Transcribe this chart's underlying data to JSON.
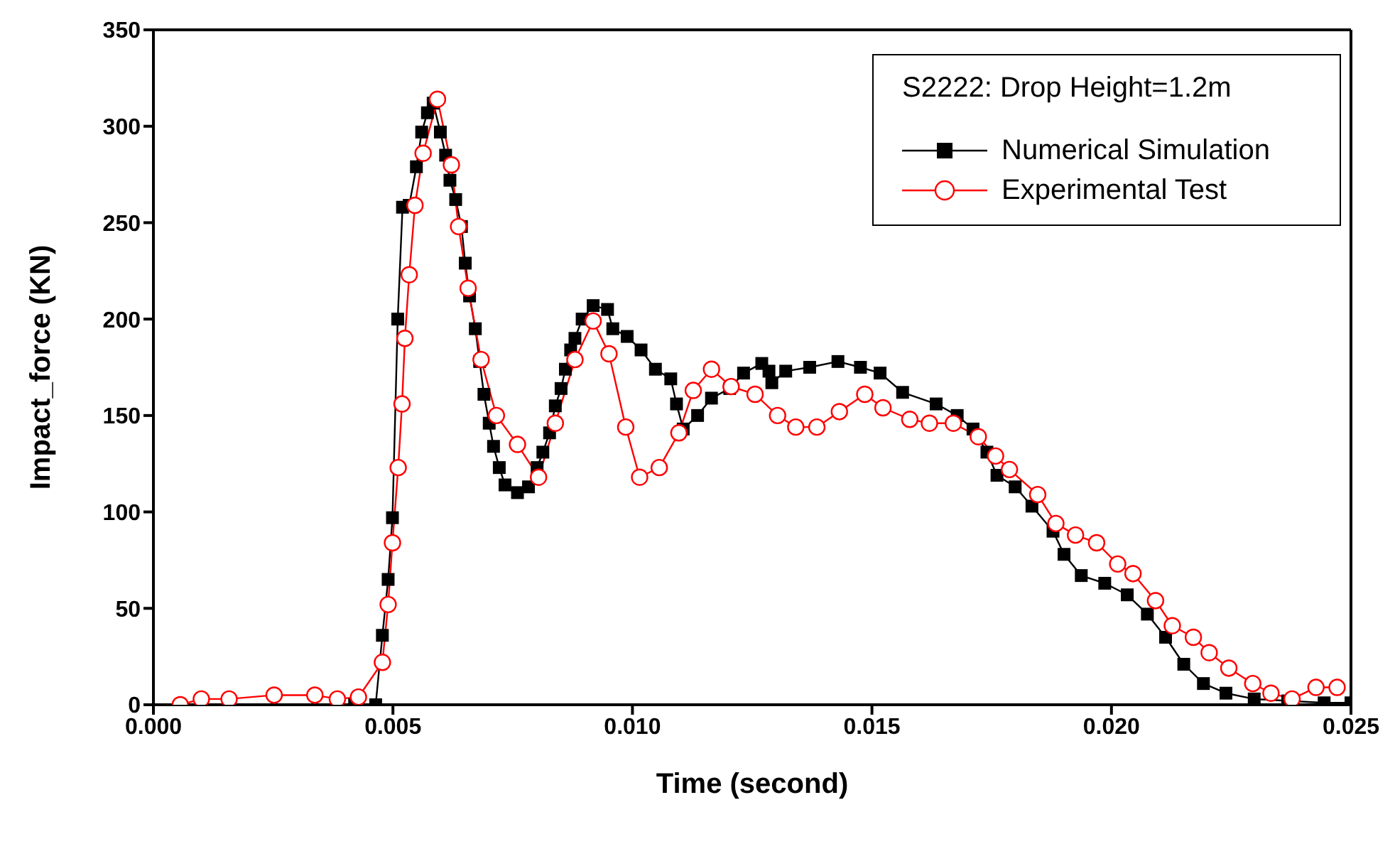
{
  "chart_data": {
    "type": "line",
    "xlabel": "Time (second)",
    "ylabel": "Impact_force (KN)",
    "legend_title": "S2222: Drop Height=1.2m",
    "legend": "top right",
    "line_style": "solid",
    "xlim": [
      0,
      0.025
    ],
    "xticks": [
      {
        "value": 0,
        "label": "0.000"
      },
      {
        "value": 0.005,
        "label": "0.005"
      },
      {
        "value": 0.01,
        "label": "0.010"
      },
      {
        "value": 0.015,
        "label": "0.015"
      },
      {
        "value": 0.02,
        "label": "0.020"
      },
      {
        "value": 0.025,
        "label": "0.025"
      }
    ],
    "ylim": [
      0,
      350
    ],
    "yticks": [
      0,
      50,
      100,
      150,
      200,
      250,
      300,
      350
    ],
    "series": [
      {
        "name": "Numerical Simulation",
        "color": "#000000",
        "marker": "square",
        "x": [
          0.0042,
          0.00464,
          0.00478,
          0.0049,
          0.00499,
          0.0051,
          0.0052,
          0.00534,
          0.00549,
          0.0056,
          0.00572,
          0.00584,
          0.00599,
          0.0061,
          0.00619,
          0.00631,
          0.00643,
          0.00651,
          0.0066,
          0.00672,
          0.00681,
          0.0069,
          0.00701,
          0.0071,
          0.00722,
          0.00734,
          0.0076,
          0.00783,
          0.00801,
          0.00813,
          0.00827,
          0.00839,
          0.00851,
          0.0086,
          0.00871,
          0.0088,
          0.00895,
          0.00918,
          0.00948,
          0.00959,
          0.00989,
          0.01018,
          0.01048,
          0.0108,
          0.01092,
          0.01106,
          0.01136,
          0.01165,
          0.01203,
          0.01232,
          0.0127,
          0.01285,
          0.01291,
          0.0132,
          0.0137,
          0.01429,
          0.01476,
          0.01517,
          0.01564,
          0.01634,
          0.01678,
          0.01711,
          0.0174,
          0.01761,
          0.01799,
          0.01834,
          0.01878,
          0.01901,
          0.01937,
          0.01986,
          0.02033,
          0.02075,
          0.02113,
          0.02151,
          0.02192,
          0.02239,
          0.02298,
          0.02368,
          0.02444,
          0.025
        ],
        "values": [
          0,
          0,
          36,
          65,
          97,
          200,
          258,
          259,
          279,
          297,
          307,
          312,
          297,
          285,
          272,
          262,
          248,
          229,
          212,
          195,
          178,
          161,
          146,
          134,
          123,
          114,
          110,
          113,
          123,
          131,
          141,
          155,
          164,
          174,
          184,
          190,
          200,
          207,
          205,
          195,
          191,
          184,
          174,
          169,
          156,
          143,
          150,
          159,
          164,
          172,
          177,
          173,
          167,
          173,
          175,
          178,
          175,
          172,
          162,
          156,
          150,
          143,
          131,
          119,
          113,
          103,
          90,
          78,
          67,
          63,
          57,
          47,
          35,
          21,
          11,
          6,
          3,
          2,
          1,
          1
        ]
      },
      {
        "name": "Experimental Test",
        "color": "#ff0000",
        "marker": "circle",
        "x": [
          0.00056,
          0.001,
          0.00158,
          0.00252,
          0.00337,
          0.00384,
          0.00428,
          0.00478,
          0.0049,
          0.00499,
          0.00511,
          0.00519,
          0.00525,
          0.00534,
          0.00546,
          0.00563,
          0.00593,
          0.00622,
          0.00637,
          0.00657,
          0.00684,
          0.00716,
          0.0076,
          0.00804,
          0.00839,
          0.0088,
          0.00918,
          0.00951,
          0.00986,
          0.01015,
          0.01056,
          0.01097,
          0.01127,
          0.01165,
          0.01206,
          0.01256,
          0.01303,
          0.01341,
          0.01385,
          0.01432,
          0.01485,
          0.01523,
          0.01579,
          0.0162,
          0.0167,
          0.01722,
          0.01758,
          0.01787,
          0.01846,
          0.01884,
          0.01925,
          0.01969,
          0.02013,
          0.02045,
          0.02092,
          0.02127,
          0.02171,
          0.02204,
          0.02245,
          0.02295,
          0.02333,
          0.02377,
          0.02427,
          0.02471
        ],
        "values": [
          0,
          3,
          3,
          5,
          5,
          3,
          4,
          22,
          52,
          84,
          123,
          156,
          190,
          223,
          259,
          286,
          314,
          280,
          248,
          216,
          179,
          150,
          135,
          118,
          146,
          179,
          199,
          182,
          144,
          118,
          123,
          141,
          163,
          174,
          165,
          161,
          150,
          144,
          144,
          152,
          161,
          154,
          148,
          146,
          146,
          139,
          129,
          122,
          109,
          94,
          88,
          84,
          73,
          68,
          54,
          41,
          35,
          27,
          19,
          11,
          6,
          3,
          9,
          9
        ]
      }
    ]
  }
}
